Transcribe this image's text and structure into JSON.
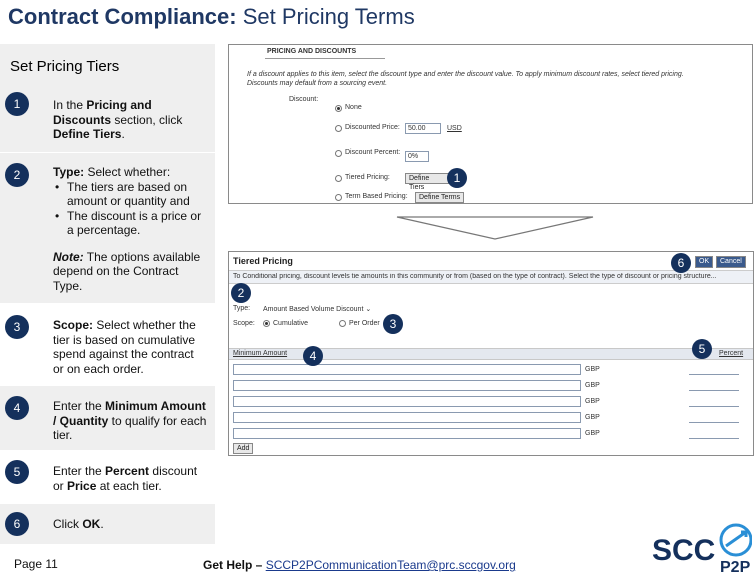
{
  "title": {
    "bold": "Contract Compliance:",
    "rest": " Set Pricing Terms"
  },
  "panel_heading": "Set Pricing Tiers",
  "steps": [
    {
      "num": "1",
      "pre": "In the ",
      "b1": "Pricing and Discounts",
      "post": " section, click ",
      "b2": "Define Tiers",
      "end": "."
    },
    {
      "num": "2",
      "b1": "Type:",
      "post": " Select whether:",
      "bullets": [
        "The tiers are based on amount or quantity and",
        "The discount is a price or a percentage."
      ],
      "note_b": "Note:",
      "note": " The options available depend on the Contract Type."
    },
    {
      "num": "3",
      "b1": "Scope:",
      "post": " Select whether the tier is based on cumulative spend against the contract or on each order."
    },
    {
      "num": "4",
      "pre": "Enter the ",
      "b1": "Minimum Amount / Quantity",
      "post": " to qualify for each tier."
    },
    {
      "num": "5",
      "pre": "Enter the ",
      "b1": "Percent",
      "mid": " discount or ",
      "b2": "Price",
      "post": " at each tier."
    },
    {
      "num": "6",
      "pre": "Click ",
      "b1": "OK",
      "post": "."
    }
  ],
  "shot1": {
    "section": "PRICING AND DISCOUNTS",
    "instr1": "If a discount applies to this item, select the discount type and enter the discount value. To apply minimum discount rates, select tiered pricing.",
    "instr2": "Discounts may default from a sourcing event.",
    "discount_label": "Discount:",
    "opt_none": "None",
    "opt_price": "Discounted Price:",
    "price_value": "50.00",
    "price_currency": "USD",
    "opt_percent": "Discount Percent:",
    "percent_value": "0%",
    "opt_tiered": "Tiered Pricing:",
    "btn_define": "Define Tiers",
    "opt_term": "Term Based Pricing:",
    "btn_define_terms": "Define Terms",
    "callout": "1"
  },
  "shot2": {
    "header": "Tiered Pricing",
    "ok": "OK",
    "cancel": "Cancel",
    "info": "To Conditional pricing, discount levels tie amounts in this community or from (based on the type of contract). Select the type of discount or pricing structure...",
    "type_label": "Type:",
    "type_value": "Amount Based Volume Discount",
    "scope_label": "Scope:",
    "scope_cumulative": "Cumulative",
    "scope_order": "Per Order",
    "col_min": "Minimum Amount",
    "col_pct": "Percent",
    "rows": [
      "GBP",
      "GBP",
      "GBP",
      "GBP",
      "GBP"
    ],
    "add": "Add",
    "callouts": [
      "2",
      "3",
      "4",
      "5",
      "6"
    ]
  },
  "footer": {
    "page": "Page 11",
    "help_bold": "Get Help – ",
    "help_link": "SCCP2PCommunicationTeam@prc.sccgov.org"
  },
  "logo": {
    "text1": "SCC",
    "text2": "P2P"
  },
  "colors": {
    "navy": "#14305c",
    "title": "#1f3864",
    "panel": "#efefef"
  }
}
